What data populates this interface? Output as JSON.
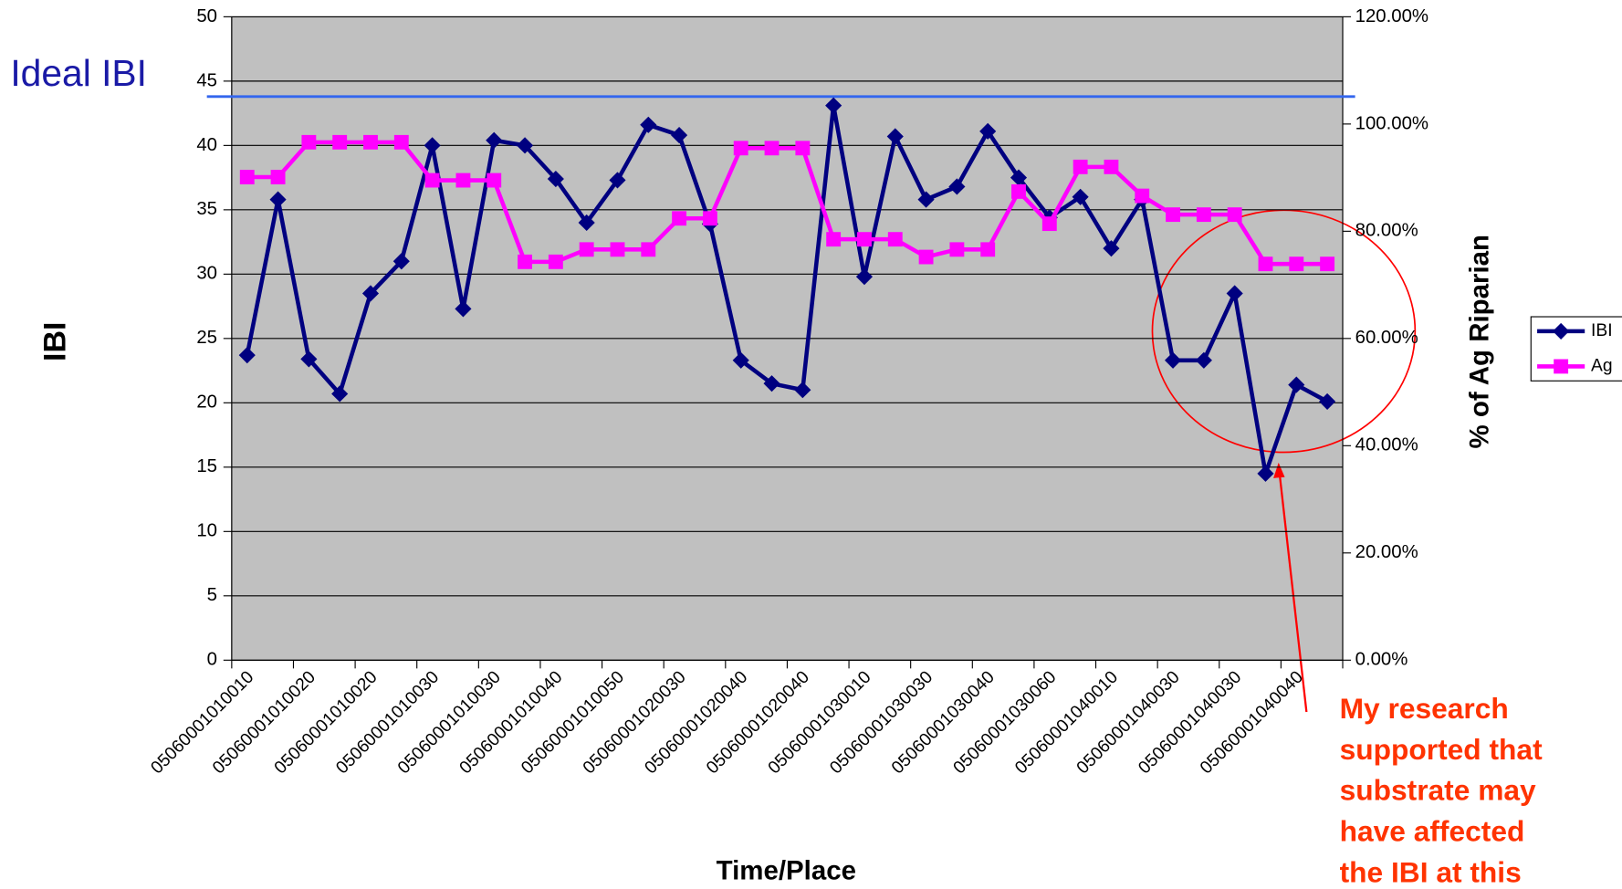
{
  "chart_data": {
    "type": "line",
    "x_label": "Time/Place",
    "y_label": "IBI",
    "y2_label": "% of Ag Riparian",
    "categories": [
      "05060001010010",
      null,
      "05060001010020",
      null,
      "05060001010020",
      null,
      "05060001010030",
      null,
      "05060001010030",
      null,
      "05060001010040",
      null,
      "05060001010050",
      null,
      "05060001020030",
      null,
      "05060001020040",
      null,
      "05060001020040",
      null,
      "05060001030010",
      null,
      "05060001030030",
      null,
      "05060001030040",
      null,
      "05060001030060",
      null,
      "05060001040010",
      null,
      "05060001040030",
      null,
      "05060001040030",
      null,
      "05060001040040",
      null
    ],
    "series": [
      {
        "name": "IBI",
        "color": "#000080",
        "marker": "diamond",
        "values": [
          23.7,
          35.8,
          23.4,
          20.7,
          28.5,
          31.0,
          40.0,
          27.3,
          40.4,
          40.0,
          37.4,
          34.0,
          37.3,
          41.6,
          40.8,
          33.9,
          23.3,
          21.5,
          21.0,
          43.1,
          29.8,
          40.7,
          35.8,
          36.8,
          41.1,
          37.5,
          34.4,
          36.0,
          32.0,
          35.8,
          23.3,
          23.3,
          28.5,
          14.5,
          21.4,
          20.1
        ]
      },
      {
        "name": "Ag",
        "color": "#ff00ff",
        "marker": "square",
        "axis": "y2",
        "values": [
          90.1,
          90.1,
          96.6,
          96.6,
          96.6,
          96.6,
          89.5,
          89.5,
          89.5,
          74.3,
          74.3,
          76.6,
          76.6,
          76.6,
          82.4,
          82.4,
          95.5,
          95.5,
          95.5,
          78.5,
          78.5,
          78.5,
          75.2,
          76.6,
          76.6,
          87.4,
          81.4,
          92.0,
          92.0,
          86.6,
          83.1,
          83.1,
          83.1,
          73.9,
          73.9,
          73.9
        ]
      }
    ],
    "ylim": [
      0,
      50
    ],
    "yticks": [
      0,
      5,
      10,
      15,
      20,
      25,
      30,
      35,
      40,
      45,
      50
    ],
    "y2lim": [
      0,
      120
    ],
    "y2ticks": [
      {
        "value": 0,
        "label": "0.00%"
      },
      {
        "value": 20,
        "label": "20.00%"
      },
      {
        "value": 40,
        "label": "40.00%"
      },
      {
        "value": 60,
        "label": "60.00%"
      },
      {
        "value": 80,
        "label": "80.00%"
      },
      {
        "value": 100,
        "label": "100.00%"
      },
      {
        "value": 120,
        "label": "120.00%"
      }
    ],
    "grid": true,
    "legend": "right",
    "reference_line": {
      "label": "Ideal IBI",
      "value": 43.8,
      "color": "#3366ee"
    },
    "annotation": [
      "My research",
      "supported that",
      "substrate may",
      "have affected",
      "the IBI at this"
    ]
  }
}
